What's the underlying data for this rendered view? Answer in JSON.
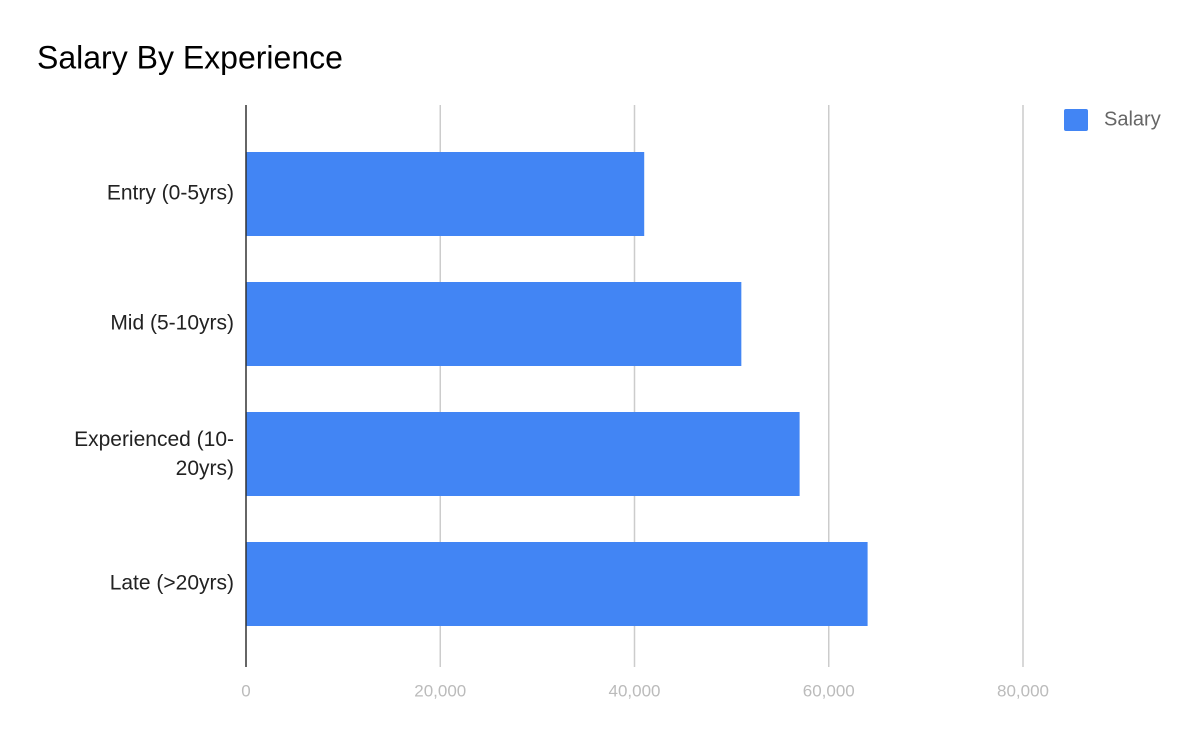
{
  "chart_data": {
    "type": "bar",
    "orientation": "horizontal",
    "title": "Salary By Experience",
    "categories": [
      "Entry (0-5yrs)",
      "Mid (5-10yrs)",
      "Experienced (10-20yrs)",
      "Late (>20yrs)"
    ],
    "series": [
      {
        "name": "Salary",
        "color": "#4285f4",
        "values": [
          41000,
          51000,
          57000,
          64000
        ]
      }
    ],
    "xlim": [
      0,
      80000
    ],
    "xticks": [
      0,
      {
        "value": 20000,
        "label": "20,000"
      },
      {
        "value": 40000,
        "label": "40,000"
      },
      {
        "value": 60000,
        "label": "60,000"
      },
      {
        "value": 80000,
        "label": "80,000"
      }
    ],
    "grid": true,
    "legend": "top-right"
  }
}
